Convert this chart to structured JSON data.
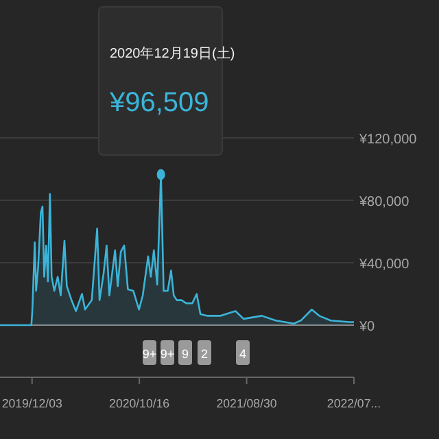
{
  "chart_data": {
    "type": "area",
    "xlim": [
      "2019-08-30",
      "2022-07-14"
    ],
    "xticks": [
      {
        "value": "2019-12-03",
        "label": "2019/12/03"
      },
      {
        "value": "2020-10-16",
        "label": "2020/10/16"
      },
      {
        "value": "2021-08-30",
        "label": "2021/08/30"
      },
      {
        "value": "2022-07-14",
        "label": "2022/07..."
      }
    ],
    "ylim": [
      0,
      120000
    ],
    "yticks": [
      {
        "value": 0,
        "label": "¥0"
      },
      {
        "value": 40000,
        "label": "¥40,000"
      },
      {
        "value": 80000,
        "label": "¥80,000"
      },
      {
        "value": 120000,
        "label": "¥120,000"
      }
    ],
    "grid": "y",
    "x": [
      "2019-08-30",
      "2019-12-01",
      "2019-12-04",
      "2019-12-11",
      "2019-12-15",
      "2019-12-21",
      "2019-12-29",
      "2020-01-03",
      "2020-01-08",
      "2020-01-14",
      "2020-01-19",
      "2020-01-25",
      "2020-01-30",
      "2020-02-07",
      "2020-02-17",
      "2020-02-26",
      "2020-03-08",
      "2020-03-15",
      "2020-03-29",
      "2020-04-11",
      "2020-04-29",
      "2020-05-08",
      "2020-05-28",
      "2020-06-13",
      "2020-06-20",
      "2020-07-02",
      "2020-07-11",
      "2020-07-19",
      "2020-08-05",
      "2020-08-13",
      "2020-08-22",
      "2020-09-01",
      "2020-09-12",
      "2020-09-28",
      "2020-10-15",
      "2020-10-26",
      "2020-11-11",
      "2020-11-19",
      "2020-11-28",
      "2020-12-08",
      "2020-12-19",
      "2020-12-27",
      "2021-01-08",
      "2021-01-18",
      "2021-01-26",
      "2021-02-04",
      "2021-02-18",
      "2021-03-04",
      "2021-03-22",
      "2021-04-04",
      "2021-04-15",
      "2021-05-04",
      "2021-06-14",
      "2021-07-28",
      "2021-08-21",
      "2021-10-14",
      "2021-11-24",
      "2022-01-17",
      "2022-02-07",
      "2022-03-11",
      "2022-04-02",
      "2022-05-06",
      "2022-06-30",
      "2022-07-14"
    ],
    "series": [
      {
        "color": "#3bb4d8",
        "values": [
          0,
          0,
          10000,
          53000,
          22000,
          37000,
          72000,
          76000,
          31000,
          51000,
          28000,
          84000,
          31000,
          22000,
          31000,
          19000,
          54000,
          25000,
          16000,
          9000,
          20000,
          10000,
          16000,
          62000,
          16000,
          33000,
          51000,
          19000,
          48000,
          25000,
          47000,
          51000,
          23000,
          22000,
          10000,
          19000,
          44000,
          31000,
          48000,
          26000,
          96509,
          22000,
          22000,
          35000,
          19000,
          16000,
          16000,
          14000,
          14000,
          20000,
          7000,
          6000,
          6000,
          9000,
          4000,
          6000,
          3000,
          1000,
          3000,
          10000,
          6000,
          3000,
          2000,
          2000
        ]
      }
    ],
    "annotations": [
      "2020年12月19日(土)",
      "¥96,509",
      "9+",
      "9+",
      "9",
      "2",
      "4"
    ]
  }
}
